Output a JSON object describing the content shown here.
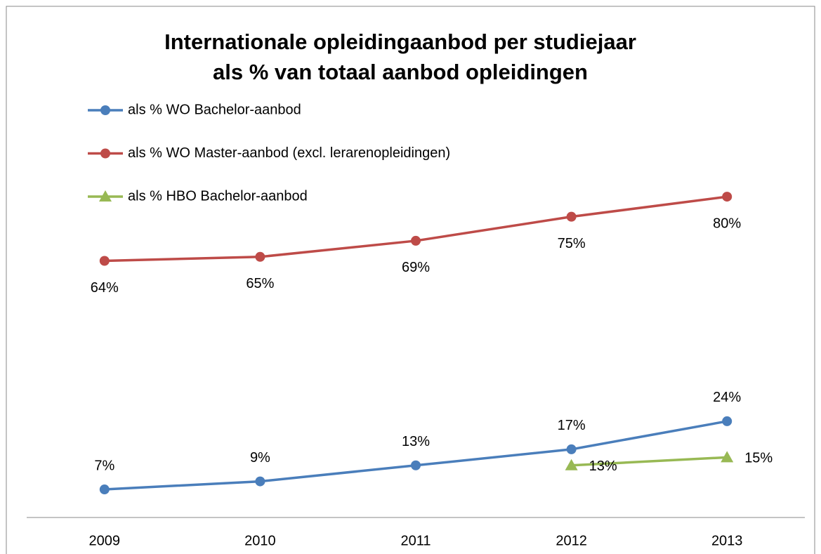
{
  "chart_data": {
    "type": "line",
    "title": [
      "Internationale opleidingaanbod per studiejaar",
      "als % van totaal aanbod opleidingen"
    ],
    "categories": [
      "2009",
      "2010",
      "2011",
      "2012",
      "2013"
    ],
    "series": [
      {
        "name": "als % WO Bachelor-aanbod",
        "color": "#4a7ebb",
        "marker": "circle",
        "label_position": "above",
        "values": [
          7,
          9,
          13,
          17,
          24
        ],
        "value_labels": [
          "7%",
          "9%",
          "13%",
          "17%",
          "24%"
        ]
      },
      {
        "name": "als % WO Master-aanbod (excl. lerarenopleidingen)",
        "color": "#be4b48",
        "marker": "circle",
        "label_position": "below",
        "values": [
          64,
          65,
          69,
          75,
          80
        ],
        "value_labels": [
          "64%",
          "65%",
          "69%",
          "75%",
          "80%"
        ]
      },
      {
        "name": "als % HBO Bachelor-aanbod",
        "color": "#98b954",
        "marker": "triangle",
        "label_position": "right",
        "values": [
          null,
          null,
          null,
          13,
          15
        ],
        "value_labels": [
          null,
          null,
          null,
          "13%",
          "15%"
        ]
      }
    ],
    "ylim": [
      0,
      90
    ],
    "legend": "top-left"
  }
}
